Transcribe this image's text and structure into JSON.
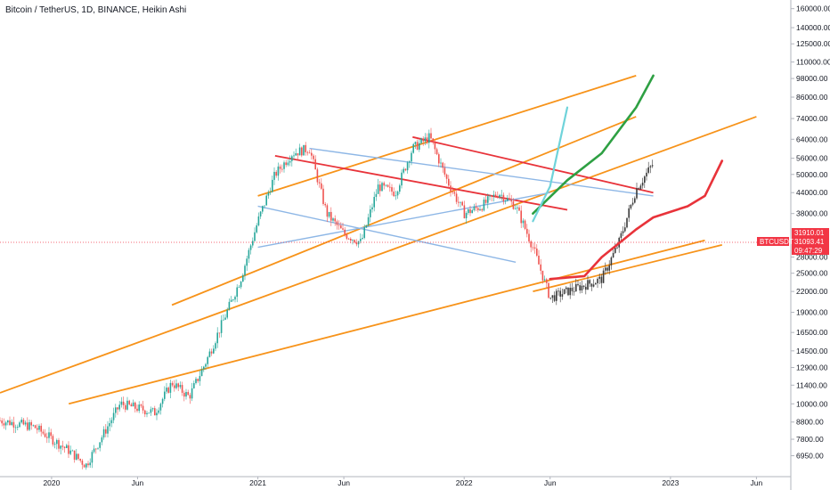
{
  "header": {
    "title": "Bitcoin / TetherUS, 1D, BINANCE, Heikin Ashi"
  },
  "price_scale": {
    "ticks": [
      "160000.00",
      "140000.00",
      "125000.00",
      "110000.00",
      "98000.00",
      "86000.00",
      "74000.00",
      "64000.00",
      "56000.00",
      "50000.00",
      "44000.00",
      "38000.00",
      "28000.00",
      "25000.00",
      "22000.00",
      "19000.00",
      "16500.00",
      "14500.00",
      "12900.00",
      "11400.00",
      "10000.00",
      "8800.00",
      "7800.00",
      "6950.00"
    ],
    "tags": [
      {
        "label": "31910.01",
        "color": "#f23645"
      },
      {
        "label": "31093.41",
        "color": "#f23645"
      },
      {
        "label": "09:47:29",
        "color": "#f23645"
      },
      {
        "label": "BTCUSDT",
        "color": "#f23645"
      }
    ]
  },
  "time_scale": {
    "ticks": [
      "2020",
      "Jun",
      "2021",
      "Jun",
      "2022",
      "Jun",
      "2023",
      "Jun"
    ]
  },
  "colors": {
    "orange": "#f7931a",
    "red": "#e8333a",
    "blue": "#8eb7e6",
    "green": "#2ea043",
    "cyan": "#6fd3da",
    "up": "#26a69a",
    "down": "#ef5350",
    "dark": "#3a3a3a"
  },
  "chart_data": {
    "type": "line",
    "scale": "log",
    "ylim": [
      6000,
      170000
    ],
    "x_range": [
      "2019-10",
      "2023-08"
    ],
    "price_series": [
      {
        "t": "2019-10",
        "v": 8900
      },
      {
        "t": "2019-12",
        "v": 8500
      },
      {
        "t": "2020-02",
        "v": 7200
      },
      {
        "t": "2020-03",
        "v": 6500
      },
      {
        "t": "2020-05",
        "v": 10000
      },
      {
        "t": "2020-07",
        "v": 9400
      },
      {
        "t": "2020-08",
        "v": 11600
      },
      {
        "t": "2020-09",
        "v": 10500
      },
      {
        "t": "2020-10",
        "v": 13500
      },
      {
        "t": "2020-11",
        "v": 18000
      },
      {
        "t": "2020-12",
        "v": 24000
      },
      {
        "t": "2021-01",
        "v": 36000
      },
      {
        "t": "2021-02",
        "v": 50000
      },
      {
        "t": "2021-03",
        "v": 58000
      },
      {
        "t": "2021-04",
        "v": 60000
      },
      {
        "t": "2021-05",
        "v": 38000
      },
      {
        "t": "2021-06",
        "v": 33000
      },
      {
        "t": "2021-07",
        "v": 31000
      },
      {
        "t": "2021-08",
        "v": 46000
      },
      {
        "t": "2021-09",
        "v": 44000
      },
      {
        "t": "2021-10",
        "v": 60000
      },
      {
        "t": "2021-11",
        "v": 65000
      },
      {
        "t": "2021-12",
        "v": 48000
      },
      {
        "t": "2022-01",
        "v": 38000
      },
      {
        "t": "2022-02",
        "v": 40000
      },
      {
        "t": "2022-03",
        "v": 44000
      },
      {
        "t": "2022-04",
        "v": 40000
      },
      {
        "t": "2022-05",
        "v": 30000
      },
      {
        "t": "2022-06",
        "v": 21000
      },
      {
        "t": "2022-07",
        "v": 22000
      },
      {
        "t": "2022-09",
        "v": 24000
      },
      {
        "t": "2022-10",
        "v": 31000
      },
      {
        "t": "2022-11",
        "v": 45000
      },
      {
        "t": "2022-12",
        "v": 54000
      }
    ],
    "projections": [
      {
        "color": "green",
        "points": [
          {
            "t": "2022-05",
            "v": 38000
          },
          {
            "t": "2022-07",
            "v": 48000
          },
          {
            "t": "2022-09",
            "v": 58000
          },
          {
            "t": "2022-11",
            "v": 80000
          },
          {
            "t": "2022-12",
            "v": 100000
          }
        ]
      },
      {
        "color": "cyan",
        "points": [
          {
            "t": "2022-05",
            "v": 36000
          },
          {
            "t": "2022-06",
            "v": 46000
          },
          {
            "t": "2022-07",
            "v": 80000
          }
        ]
      },
      {
        "color": "red",
        "points": [
          {
            "t": "2022-06",
            "v": 24000
          },
          {
            "t": "2022-08",
            "v": 24500
          },
          {
            "t": "2022-09",
            "v": 28000
          },
          {
            "t": "2022-11",
            "v": 34000
          },
          {
            "t": "2022-12",
            "v": 37000
          },
          {
            "t": "2023-02",
            "v": 40000
          },
          {
            "t": "2023-03",
            "v": 43000
          },
          {
            "t": "2023-04",
            "v": 55000
          }
        ]
      }
    ],
    "channels": [
      {
        "color": "orange",
        "from": {
          "t": "2019-10",
          "v": 10800
        },
        "to": {
          "t": "2023-06",
          "v": 75000
        }
      },
      {
        "color": "orange",
        "from": {
          "t": "2020-08",
          "v": 20000
        },
        "to": {
          "t": "2022-11",
          "v": 75000
        }
      },
      {
        "color": "orange",
        "from": {
          "t": "2020-02",
          "v": 10000
        },
        "to": {
          "t": "2023-03",
          "v": 31500
        }
      },
      {
        "color": "orange",
        "from": {
          "t": "2021-01",
          "v": 43000
        },
        "to": {
          "t": "2022-11",
          "v": 100000
        }
      },
      {
        "color": "orange",
        "from": {
          "t": "2022-05",
          "v": 22000
        },
        "to": {
          "t": "2023-04",
          "v": 30500
        }
      },
      {
        "color": "red",
        "from": {
          "t": "2021-02",
          "v": 57000
        },
        "to": {
          "t": "2022-07",
          "v": 39000
        }
      },
      {
        "color": "red",
        "from": {
          "t": "2021-10",
          "v": 65000
        },
        "to": {
          "t": "2022-12",
          "v": 44000
        }
      },
      {
        "color": "blue",
        "from": {
          "t": "2021-04",
          "v": 60000
        },
        "to": {
          "t": "2022-12",
          "v": 43000
        }
      },
      {
        "color": "blue",
        "from": {
          "t": "2021-01",
          "v": 40000
        },
        "to": {
          "t": "2022-04",
          "v": 27000
        }
      },
      {
        "color": "blue",
        "from": {
          "t": "2021-01",
          "v": 30000
        },
        "to": {
          "t": "2022-06",
          "v": 44000
        }
      }
    ]
  }
}
